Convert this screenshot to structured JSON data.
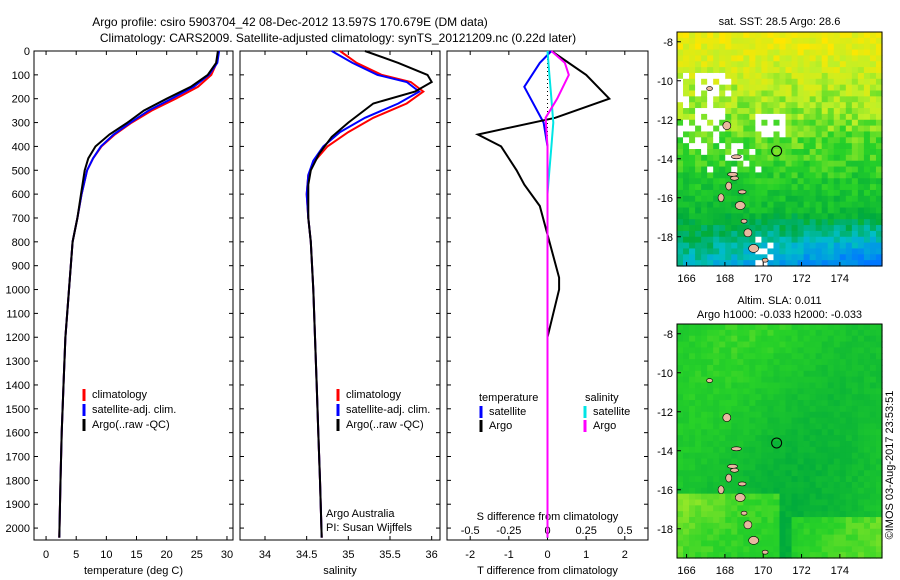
{
  "header": {
    "line1": "Argo profile: csiro 5903704_42 08-Dec-2012 13.597S 170.679E (DM data)",
    "line2": "Climatology: CARS2009. Satellite-adjusted climatology: synTS_20121209.nc (0.22d later)"
  },
  "footer": {
    "stamp": "©IMOS 03-Aug-2017 23:53:51"
  },
  "colors": {
    "climatology": "#ff0000",
    "satellite": "#0000ff",
    "argo": "#000000",
    "sal_satellite": "#00e5e5",
    "sal_argo": "#ff00ff"
  },
  "chart_data": [
    {
      "type": "line",
      "id": "temperature",
      "xlabel": "temperature (deg C)",
      "xlim": [
        -2,
        31
      ],
      "ylim": [
        0,
        2050
      ],
      "xticks": [
        0,
        5,
        10,
        15,
        20,
        25,
        30
      ],
      "yticks": [
        0,
        100,
        200,
        300,
        400,
        500,
        600,
        700,
        800,
        900,
        1000,
        1100,
        1200,
        1300,
        1400,
        1500,
        1600,
        1700,
        1800,
        1900,
        2000
      ],
      "legend": [
        "climatology",
        "satellite-adj. clim.",
        "Argo(..raw -QC)"
      ],
      "series": [
        {
          "name": "climatology",
          "color": "#ff0000",
          "x": [
            28.6,
            28.3,
            27.4,
            25.2,
            21.5,
            17.5,
            14.2,
            11.4,
            9.2,
            7.8,
            6.8,
            5.9,
            5.2,
            4.4,
            3.8,
            3.2,
            2.9,
            2.6,
            2.4,
            2.2
          ],
          "y": [
            0,
            50,
            100,
            150,
            200,
            250,
            300,
            350,
            400,
            450,
            500,
            600,
            700,
            800,
            1000,
            1200,
            1400,
            1600,
            1800,
            2040
          ]
        },
        {
          "name": "satellite-adj. clim.",
          "color": "#0000ff",
          "x": [
            28.7,
            28.4,
            27.0,
            24.5,
            20.8,
            17.0,
            14.0,
            11.2,
            9.1,
            7.8,
            6.8,
            5.9,
            5.2,
            4.4,
            3.8,
            3.2,
            2.9,
            2.6,
            2.4,
            2.2
          ],
          "y": [
            0,
            50,
            100,
            150,
            200,
            250,
            300,
            350,
            400,
            450,
            500,
            600,
            700,
            800,
            1000,
            1200,
            1400,
            1600,
            1800,
            2040
          ]
        },
        {
          "name": "Argo(..raw -QC)",
          "color": "#000000",
          "x": [
            28.5,
            28.2,
            26.8,
            24.0,
            20.0,
            16.2,
            13.5,
            10.5,
            8.2,
            7.0,
            6.4,
            5.8,
            5.2,
            4.4,
            3.8,
            3.2,
            2.9,
            2.6,
            2.4,
            2.2
          ],
          "y": [
            0,
            50,
            100,
            150,
            200,
            250,
            300,
            350,
            400,
            450,
            500,
            600,
            700,
            800,
            1000,
            1200,
            1400,
            1600,
            1800,
            2040
          ]
        }
      ]
    },
    {
      "type": "line",
      "id": "salinity",
      "xlabel": "salinity",
      "xlim": [
        33.7,
        36.1
      ],
      "ylim": [
        0,
        2050
      ],
      "xticks": [
        34,
        34.5,
        35,
        35.5,
        36
      ],
      "yticks": [
        0,
        100,
        200,
        300,
        400,
        500,
        600,
        700,
        800,
        900,
        1000,
        1100,
        1200,
        1300,
        1400,
        1500,
        1600,
        1700,
        1800,
        1900,
        2000
      ],
      "legend": [
        "climatology",
        "satellite-adj. clim.",
        "Argo(..raw -QC)"
      ],
      "annotation": [
        "Argo Australia",
        "PI: Susan Wijffels"
      ],
      "series": [
        {
          "name": "climatology",
          "color": "#ff0000",
          "x": [
            34.9,
            35.1,
            35.4,
            35.75,
            35.9,
            35.7,
            35.3,
            35.0,
            34.75,
            34.6,
            34.52,
            34.5,
            34.52,
            34.55,
            34.58,
            34.6,
            34.62,
            34.64,
            34.66,
            34.68
          ],
          "y": [
            0,
            50,
            100,
            130,
            170,
            220,
            280,
            340,
            400,
            460,
            520,
            600,
            700,
            800,
            1000,
            1200,
            1400,
            1600,
            1800,
            2040
          ]
        },
        {
          "name": "satellite-adj. clim.",
          "color": "#0000ff",
          "x": [
            34.8,
            35.05,
            35.35,
            35.7,
            35.85,
            35.6,
            35.2,
            34.9,
            34.7,
            34.58,
            34.52,
            34.5,
            34.52,
            34.55,
            34.58,
            34.6,
            34.62,
            34.64,
            34.66,
            34.68
          ],
          "y": [
            0,
            50,
            100,
            130,
            170,
            220,
            280,
            340,
            400,
            460,
            520,
            600,
            700,
            800,
            1000,
            1200,
            1400,
            1600,
            1800,
            2040
          ]
        },
        {
          "name": "Argo(..raw -QC)",
          "color": "#000000",
          "x": [
            35.2,
            35.6,
            35.95,
            36.0,
            35.8,
            35.3,
            35.0,
            34.8,
            34.65,
            34.55,
            34.52,
            34.52,
            34.55,
            34.58,
            34.6,
            34.62,
            34.64,
            34.66,
            34.68
          ],
          "y": [
            0,
            50,
            100,
            130,
            170,
            220,
            300,
            360,
            430,
            500,
            560,
            700,
            800,
            1000,
            1200,
            1400,
            1600,
            1800,
            2040
          ]
        }
      ]
    },
    {
      "type": "line",
      "id": "difference",
      "xlabel_top": "S difference from climatology",
      "xlabel": "T difference from climatology",
      "xlim": [
        -2.6,
        2.6
      ],
      "ylim": [
        0,
        2050
      ],
      "xticks": [
        -2,
        -1,
        0,
        1,
        2
      ],
      "xticks_top": [
        -0.5,
        -0.25,
        0,
        0.25,
        0.5
      ],
      "yticks": [
        0,
        100,
        200,
        300,
        400,
        500,
        600,
        700,
        800,
        900,
        1000,
        1100,
        1200,
        1300,
        1400,
        1500,
        1600,
        1700,
        1800,
        1900,
        2000
      ],
      "legend_headers": [
        "temperature",
        "salinity"
      ],
      "legend": [
        "satellite",
        "Argo",
        "satellite",
        "Argo"
      ],
      "series": [
        {
          "name": "satellite",
          "color": "#0000ff",
          "x": [
            0.1,
            -0.2,
            -0.6,
            -0.1,
            0.0,
            0.0,
            0.0,
            0.0,
            0.0,
            0.0,
            0.0
          ],
          "y": [
            0,
            50,
            150,
            300,
            400,
            600,
            800,
            1000,
            1400,
            1800,
            2040
          ]
        },
        {
          "name": "Argo",
          "color": "#000000",
          "x": [
            0.1,
            1.0,
            1.6,
            0.2,
            -1.8,
            -1.2,
            -0.8,
            -0.6,
            -0.2,
            0.3,
            0.3,
            0.0,
            0.0,
            0.0
          ],
          "y": [
            0,
            100,
            200,
            280,
            350,
            400,
            500,
            560,
            650,
            950,
            1000,
            1200,
            1600,
            2040
          ]
        },
        {
          "name": "satellite",
          "color": "#00e5e5",
          "x": [
            0.0,
            0.05,
            0.1,
            0.15,
            0.1,
            0.05,
            0.0,
            0.0,
            0.0,
            0.0
          ],
          "y": [
            0,
            100,
            200,
            300,
            400,
            500,
            600,
            1000,
            1500,
            2040
          ]
        },
        {
          "name": "Argo",
          "color": "#ff00ff",
          "x": [
            0.1,
            0.45,
            0.55,
            0.4,
            0.25,
            -0.05,
            0.0,
            0.0,
            0.0,
            0.0
          ],
          "y": [
            0,
            50,
            100,
            150,
            200,
            280,
            400,
            600,
            1000,
            2040
          ]
        }
      ]
    },
    {
      "type": "heatmap",
      "id": "sst-map",
      "title": "sat. SST: 28.5 Argo: 28.6",
      "xlim": [
        165.5,
        176.2
      ],
      "ylim": [
        -19.5,
        -7.5
      ],
      "xticks": [
        166,
        168,
        170,
        172,
        174
      ],
      "yticks": [
        -8,
        -10,
        -12,
        -14,
        -16,
        -18
      ],
      "marker": {
        "lon": 170.7,
        "lat": -13.6
      }
    },
    {
      "type": "heatmap",
      "id": "sla-map",
      "title": "Altim. SLA: 0.011",
      "subtitle": "Argo h1000: -0.033 h2000: -0.033",
      "xlim": [
        165.5,
        176.2
      ],
      "ylim": [
        -19.5,
        -7.5
      ],
      "xticks": [
        166,
        168,
        170,
        172,
        174
      ],
      "yticks": [
        -8,
        -10,
        -12,
        -14,
        -16,
        -18
      ],
      "marker": {
        "lon": 170.7,
        "lat": -13.6
      }
    }
  ]
}
